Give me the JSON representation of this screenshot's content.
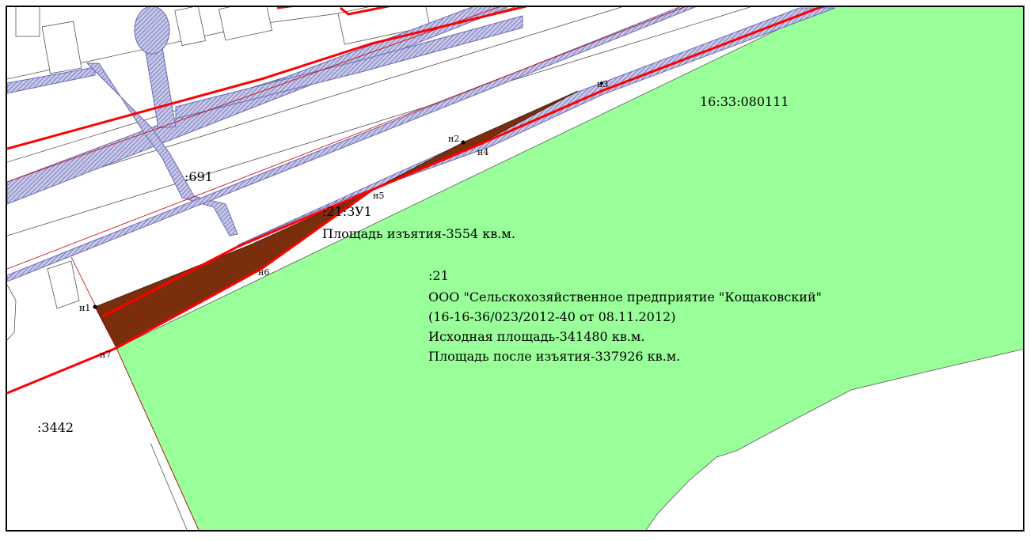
{
  "cadastral_block": "16:33:080111",
  "parcels": {
    "p691": ":691",
    "p3442": ":3442",
    "p21": ":21"
  },
  "new_parcel": {
    "id": ":21:ЗУ1",
    "area": "Площадь изъятия-3554 кв.м."
  },
  "owner_info": {
    "line1": "ООО \"Сельскохозяйственное предприятие \"Кощаковский\"",
    "line2": "(16-16-36/023/2012-40 от 08.11.2012)",
    "line3": "Исходная площадь-341480 кв.м.",
    "line4": "Площадь после изъятия-337926 кв.м."
  },
  "points": {
    "n1": "н1",
    "n2": "н2",
    "n3": "н3",
    "n4": "н4",
    "n5": "н5",
    "n6": "н6",
    "n7": "н7"
  },
  "colors": {
    "field": "#99ff99",
    "seized": "#7b2e0e",
    "boundary": "#ff0000",
    "utility": "#8080c0",
    "thin_line": "#c00000",
    "background": "#ffffff"
  }
}
